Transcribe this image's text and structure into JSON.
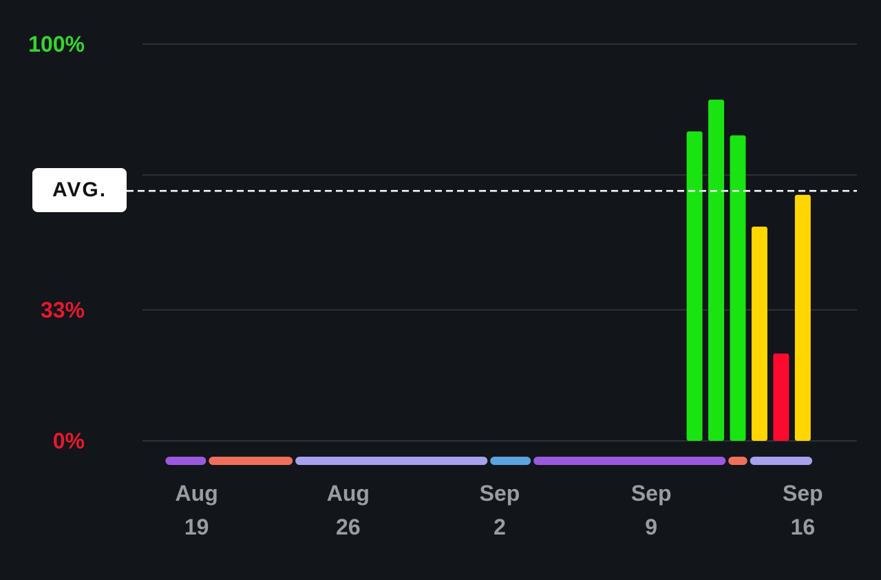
{
  "chart_data": {
    "type": "bar",
    "y_axis": {
      "ylim": [
        0,
        100
      ],
      "ticks": [
        {
          "value": 100,
          "label": "100%",
          "color": "#34d62e"
        },
        {
          "value": 33,
          "label": "33%",
          "color": "#e5192e"
        },
        {
          "value": 0,
          "label": "0%",
          "color": "#e5192e"
        }
      ],
      "gridlines": [
        0,
        33,
        67,
        100
      ]
    },
    "x_axis": {
      "range": [
        "2024-08-17",
        "2024-09-19"
      ],
      "ticks": [
        {
          "date": "2024-08-19",
          "month": "Aug",
          "day": "19"
        },
        {
          "date": "2024-08-26",
          "month": "Aug",
          "day": "26"
        },
        {
          "date": "2024-09-02",
          "month": "Sep",
          "day": "2"
        },
        {
          "date": "2024-09-09",
          "month": "Sep",
          "day": "9"
        },
        {
          "date": "2024-09-16",
          "month": "Sep",
          "day": "16"
        }
      ]
    },
    "average": {
      "label": "AVG.",
      "value": 63
    },
    "bars": [
      {
        "date": "2024-09-11",
        "value": 78,
        "color": "#19e412"
      },
      {
        "date": "2024-09-12",
        "value": 86,
        "color": "#19e412"
      },
      {
        "date": "2024-09-13",
        "value": 77,
        "color": "#19e412"
      },
      {
        "date": "2024-09-14",
        "value": 54,
        "color": "#ffd600"
      },
      {
        "date": "2024-09-15",
        "value": 22,
        "color": "#ff0a2f"
      },
      {
        "date": "2024-09-16",
        "value": 62,
        "color": "#ffd600"
      }
    ],
    "timeline_segments": [
      {
        "start": "2024-08-18",
        "end": "2024-08-20",
        "color": "#9b59e0"
      },
      {
        "start": "2024-08-20",
        "end": "2024-08-24",
        "color": "#f06f5b"
      },
      {
        "start": "2024-08-24",
        "end": "2024-09-02",
        "color": "#a5a3ee"
      },
      {
        "start": "2024-09-02",
        "end": "2024-09-04",
        "color": "#5aa4e0"
      },
      {
        "start": "2024-09-04",
        "end": "2024-09-13",
        "color": "#9b59e0"
      },
      {
        "start": "2024-09-13",
        "end": "2024-09-14",
        "color": "#f06f5b"
      },
      {
        "start": "2024-09-14",
        "end": "2024-09-17",
        "color": "#a5a3ee"
      }
    ],
    "grid": true,
    "legend": "none"
  }
}
